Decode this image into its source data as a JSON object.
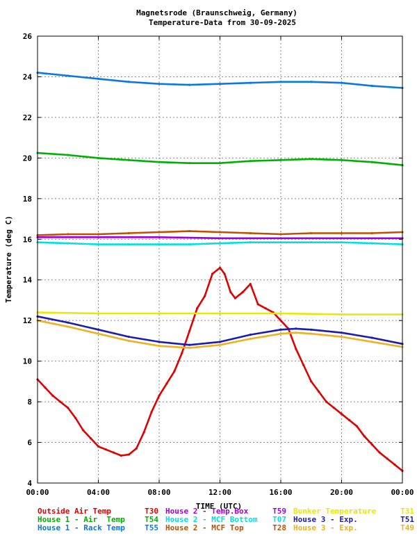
{
  "chart_data": {
    "type": "line",
    "title": "Magnetsrode (Braunschweig, Germany)",
    "subtitle": "Temperature-Data from 30-09-2025",
    "xlabel": "TIME (UTC)",
    "ylabel": "Temperature (deg C)",
    "xlim": [
      0,
      24
    ],
    "ylim": [
      4,
      26
    ],
    "x_ticks": [
      "00:00",
      "04:00",
      "08:00",
      "12:00",
      "16:00",
      "20:00",
      "00:00"
    ],
    "y_ticks": [
      "4",
      "6",
      "8",
      "10",
      "12",
      "14",
      "16",
      "18",
      "20",
      "22",
      "24",
      "26"
    ],
    "grid": true,
    "legend_position": "bottom",
    "series": [
      {
        "name": "Outside Air Temp",
        "code": "T30",
        "color": "#e00000",
        "x": [
          0,
          0.5,
          1,
          1.5,
          2,
          2.5,
          3,
          3.5,
          4,
          4.5,
          5,
          5.5,
          6,
          6.5,
          7,
          7.5,
          8,
          8.5,
          9,
          9.5,
          10,
          10.5,
          11,
          11.5,
          12,
          12.3,
          12.7,
          13,
          13.5,
          14,
          14.5,
          15,
          15.5,
          16,
          16.5,
          17,
          17.5,
          18,
          18.5,
          19,
          19.5,
          20,
          20.5,
          21,
          21.5,
          22,
          22.5,
          23,
          23.5,
          24
        ],
        "values": [
          9.1,
          8.7,
          8.3,
          8.0,
          7.7,
          7.2,
          6.6,
          6.2,
          5.8,
          5.65,
          5.5,
          5.35,
          5.4,
          5.7,
          6.5,
          7.5,
          8.3,
          8.9,
          9.5,
          10.4,
          11.5,
          12.6,
          13.2,
          14.3,
          14.6,
          14.3,
          13.4,
          13.1,
          13.4,
          13.8,
          12.8,
          12.6,
          12.4,
          12.0,
          11.6,
          10.6,
          9.8,
          9.0,
          8.5,
          8.0,
          7.7,
          7.4,
          7.1,
          6.8,
          6.3,
          5.9,
          5.5,
          5.2,
          4.9,
          4.6
        ]
      },
      {
        "name": "House 1 - Air  Temp",
        "code": "T54",
        "color": "#00b000",
        "x": [
          0,
          2,
          4,
          6,
          8,
          10,
          12,
          14,
          16,
          18,
          20,
          22,
          24
        ],
        "values": [
          20.25,
          20.15,
          20.0,
          19.9,
          19.8,
          19.75,
          19.75,
          19.85,
          19.9,
          19.95,
          19.9,
          19.8,
          19.65
        ]
      },
      {
        "name": "House 1 - Rack Temp",
        "code": "T55",
        "color": "#0a78e0",
        "x": [
          0,
          2,
          4,
          6,
          8,
          10,
          12,
          14,
          16,
          18,
          20,
          22,
          24
        ],
        "values": [
          24.2,
          24.05,
          23.9,
          23.75,
          23.65,
          23.6,
          23.65,
          23.7,
          23.75,
          23.75,
          23.7,
          23.55,
          23.45
        ]
      },
      {
        "name": "House 2 - Temp.Box",
        "code": "T59",
        "color": "#a000e0",
        "x": [
          0,
          4,
          8,
          12,
          16,
          20,
          24
        ],
        "values": [
          16.1,
          16.1,
          16.1,
          16.05,
          16.05,
          16.05,
          16.05
        ]
      },
      {
        "name": "House 2 - MCF Bottom",
        "code": "T07",
        "color": "#00e0e0",
        "x": [
          0,
          2,
          4,
          6,
          8,
          10,
          12,
          14,
          16,
          18,
          20,
          22,
          24
        ],
        "values": [
          15.85,
          15.8,
          15.75,
          15.75,
          15.75,
          15.75,
          15.8,
          15.85,
          15.85,
          15.85,
          15.85,
          15.8,
          15.75
        ]
      },
      {
        "name": "House 2 - MCF Top",
        "code": "T28",
        "color": "#c05000",
        "x": [
          0,
          2,
          4,
          6,
          8,
          10,
          12,
          14,
          16,
          18,
          20,
          22,
          24
        ],
        "values": [
          16.2,
          16.25,
          16.25,
          16.3,
          16.35,
          16.4,
          16.35,
          16.3,
          16.25,
          16.3,
          16.3,
          16.3,
          16.35
        ]
      },
      {
        "name": "Bunker Temperature",
        "code": "T31",
        "color": "#e8e800",
        "x": [
          0,
          4,
          8,
          12,
          16,
          20,
          24
        ],
        "values": [
          12.4,
          12.35,
          12.35,
          12.35,
          12.35,
          12.3,
          12.3
        ]
      },
      {
        "name": "House 3 - Exp.",
        "code": "T51",
        "color": "#1c1cb0",
        "x": [
          0,
          2,
          4,
          6,
          8,
          10,
          12,
          14,
          16,
          17,
          18,
          20,
          22,
          24
        ],
        "values": [
          12.2,
          11.9,
          11.55,
          11.2,
          10.95,
          10.8,
          10.95,
          11.3,
          11.55,
          11.6,
          11.55,
          11.4,
          11.15,
          10.85
        ]
      },
      {
        "name": "House 3 - Exp.",
        "code": "T49",
        "color": "#f0b020",
        "x": [
          0,
          2,
          4,
          6,
          8,
          10,
          12,
          14,
          16,
          17,
          18,
          20,
          22,
          24
        ],
        "values": [
          12.0,
          11.7,
          11.35,
          11.0,
          10.75,
          10.65,
          10.8,
          11.1,
          11.35,
          11.4,
          11.35,
          11.2,
          10.95,
          10.7
        ]
      }
    ]
  },
  "legend": [
    {
      "name": "Outside Air Temp",
      "code": "T30",
      "color": "#e00000"
    },
    {
      "name": "House 2 - Temp.Box",
      "code": "T59",
      "color": "#a000e0"
    },
    {
      "name": "Bunker Temperature",
      "code": "T31",
      "color": "#e8e800"
    },
    {
      "name": "House 1 - Air  Temp",
      "code": "T54",
      "color": "#00b000"
    },
    {
      "name": "House 2 - MCF Bottom",
      "code": "T07",
      "color": "#00e0e0"
    },
    {
      "name": "House 3 - Exp.",
      "code": "T51",
      "color": "#1c1cb0"
    },
    {
      "name": "House 1 - Rack Temp",
      "code": "T55",
      "color": "#0a78e0"
    },
    {
      "name": "House 2 - MCF Top",
      "code": "T28",
      "color": "#c05000"
    },
    {
      "name": "House 3 - Exp.",
      "code": "T49",
      "color": "#f0b020"
    }
  ]
}
